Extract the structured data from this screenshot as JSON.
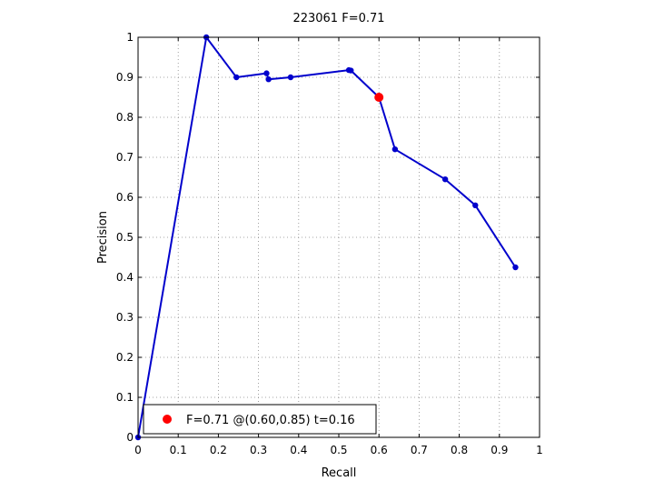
{
  "chart_data": {
    "type": "line",
    "title": "223061 F=0.71",
    "xlabel": "Recall",
    "ylabel": "Precision",
    "xlim": [
      0,
      1
    ],
    "ylim": [
      0,
      1
    ],
    "xticks": [
      "0",
      "0.1",
      "0.2",
      "0.3",
      "0.4",
      "0.5",
      "0.6",
      "0.7",
      "0.8",
      "0.9",
      "1"
    ],
    "yticks": [
      "0",
      "0.1",
      "0.2",
      "0.3",
      "0.4",
      "0.5",
      "0.6",
      "0.7",
      "0.8",
      "0.9",
      "1"
    ],
    "grid": true,
    "series": [
      {
        "color": "#0000cc",
        "x": [
          0.0,
          0.17,
          0.245,
          0.32,
          0.325,
          0.38,
          0.525,
          0.53,
          0.6,
          0.64,
          0.765,
          0.84,
          0.94
        ],
        "y": [
          0.0,
          1.0,
          0.9,
          0.91,
          0.895,
          0.9,
          0.918,
          0.917,
          0.85,
          0.72,
          0.645,
          0.58,
          0.425
        ]
      }
    ],
    "highlight": {
      "x": 0.6,
      "y": 0.85,
      "color": "#ff0000"
    },
    "legend": {
      "position": "bottom-left",
      "label": "F=0.71 @(0.60,0.85) t=0.16"
    }
  }
}
